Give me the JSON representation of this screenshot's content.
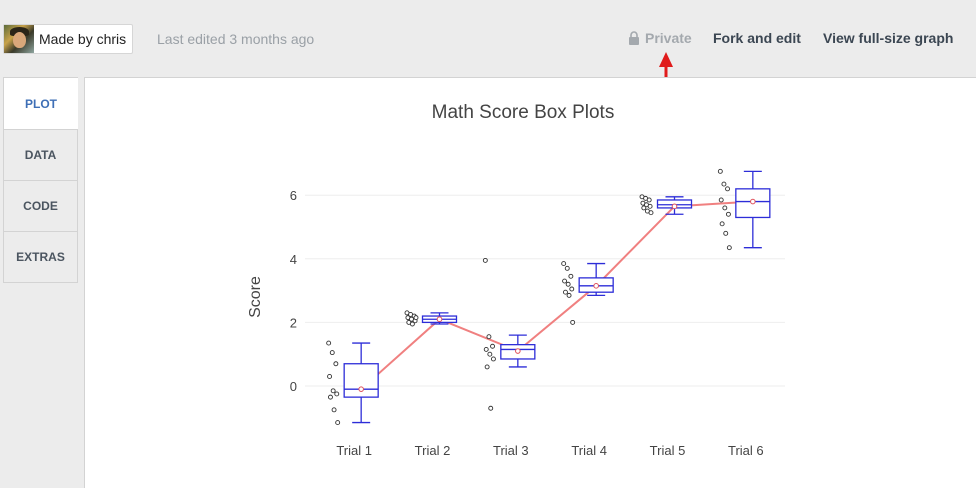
{
  "header": {
    "author_label": "Made by chris",
    "last_edited": "Last edited 3 months ago",
    "privacy": "Private",
    "fork_label": "Fork and edit",
    "view_full_label": "View full-size graph"
  },
  "sidebar": {
    "tabs": [
      {
        "label": "PLOT",
        "active": true
      },
      {
        "label": "DATA",
        "active": false
      },
      {
        "label": "CODE",
        "active": false
      },
      {
        "label": "EXTRAS",
        "active": false
      }
    ]
  },
  "colors": {
    "box": "#2d2dd8",
    "mean_line": "#f08080",
    "annotation_arrow": "#e01b1b",
    "active_tab": "#3e6fb6"
  },
  "chart_data": {
    "type": "box",
    "title": "Math Score Box Plots",
    "xlabel": "",
    "ylabel": "Score",
    "yticks": [
      0,
      2,
      4,
      6
    ],
    "ylim": [
      -1.5,
      7.2
    ],
    "grid": true,
    "categories": [
      "Trial 1",
      "Trial 2",
      "Trial 3",
      "Trial 4",
      "Trial 5",
      "Trial 6"
    ],
    "boxes": [
      {
        "min": -1.15,
        "q1": -0.35,
        "median": -0.1,
        "q3": 0.7,
        "max": 1.35
      },
      {
        "min": 1.95,
        "q1": 2.0,
        "median": 2.1,
        "q3": 2.2,
        "max": 2.3
      },
      {
        "min": 0.6,
        "q1": 0.85,
        "median": 1.15,
        "q3": 1.3,
        "max": 1.6
      },
      {
        "min": 2.85,
        "q1": 2.95,
        "median": 3.15,
        "q3": 3.4,
        "max": 3.85
      },
      {
        "min": 5.4,
        "q1": 5.6,
        "median": 5.7,
        "q3": 5.85,
        "max": 5.95
      },
      {
        "min": 4.35,
        "q1": 5.3,
        "median": 5.8,
        "q3": 6.2,
        "max": 6.75
      }
    ],
    "means": [
      -0.1,
      2.1,
      1.1,
      3.15,
      5.65,
      5.8
    ],
    "points": [
      [
        1.35,
        1.05,
        0.7,
        0.3,
        -0.15,
        -0.25,
        -0.35,
        -0.75,
        -1.15
      ],
      [
        2.3,
        2.25,
        2.2,
        2.15,
        2.1,
        2.05,
        2.0,
        1.95,
        2.15
      ],
      [
        3.95,
        1.55,
        1.25,
        1.15,
        1.0,
        0.85,
        0.6,
        -0.7
      ],
      [
        3.85,
        3.7,
        3.45,
        3.3,
        3.2,
        3.05,
        2.95,
        2.85,
        2.0
      ],
      [
        5.95,
        5.9,
        5.85,
        5.75,
        5.7,
        5.65,
        5.6,
        5.5,
        5.45
      ],
      [
        6.75,
        6.35,
        6.2,
        5.85,
        5.6,
        5.4,
        5.1,
        4.8,
        4.35
      ]
    ]
  }
}
